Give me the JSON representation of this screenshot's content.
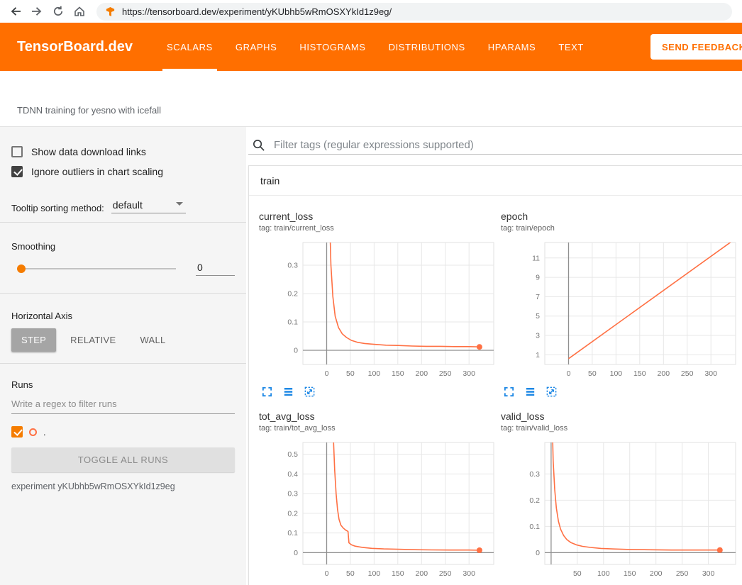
{
  "browser": {
    "url": "https://tensorboard.dev/experiment/yKUbhb5wRmOSXYkId1z9eg/"
  },
  "header": {
    "logo": "TensorBoard.dev",
    "tabs": [
      {
        "label": "SCALARS",
        "active": true
      },
      {
        "label": "GRAPHS",
        "active": false
      },
      {
        "label": "HISTOGRAMS",
        "active": false
      },
      {
        "label": "DISTRIBUTIONS",
        "active": false
      },
      {
        "label": "HPARAMS",
        "active": false
      },
      {
        "label": "TEXT",
        "active": false
      }
    ],
    "feedback_button": "SEND FEEDBACK"
  },
  "experiment_bar": {
    "title": "TDNN training for yesno with icefall"
  },
  "sidebar": {
    "show_download_label": "Show data download links",
    "show_download_checked": false,
    "ignore_outliers_label": "Ignore outliers in chart scaling",
    "ignore_outliers_checked": true,
    "tooltip_label": "Tooltip sorting method:",
    "tooltip_value": "default",
    "smoothing_label": "Smoothing",
    "smoothing_value": "0",
    "axis_label": "Horizontal Axis",
    "axis_options": [
      "STEP",
      "RELATIVE",
      "WALL"
    ],
    "axis_selected": "STEP",
    "runs_label": "Runs",
    "runs_filter_placeholder": "Write a regex to filter runs",
    "run_name": ".",
    "run_checked": true,
    "toggle_all_label": "TOGGLE ALL RUNS",
    "experiment_name": "experiment yKUbhb5wRmOSXYkId1z9eg"
  },
  "main": {
    "filter_placeholder": "Filter tags (regular expressions supported)",
    "group_label": "train"
  },
  "colors": {
    "header": "#ff6f00",
    "accent": "#f57c00",
    "icon_blue": "#1e88e5",
    "line": "#ff7043"
  },
  "chart_data": [
    {
      "type": "line",
      "title": "current_loss",
      "tag": "tag: train/current_loss",
      "xlim": [
        -50,
        352
      ],
      "ylim": [
        -0.05,
        0.38
      ],
      "xticks": [
        0,
        50,
        100,
        150,
        200,
        250,
        300
      ],
      "yticks": [
        0,
        0.1,
        0.2,
        0.3
      ],
      "grid": true,
      "series": [
        {
          "name": ".",
          "color": "#ff7043",
          "endpoint": true,
          "points": [
            [
              5,
              0.55
            ],
            [
              9,
              0.3
            ],
            [
              13,
              0.19
            ],
            [
              18,
              0.12
            ],
            [
              25,
              0.08
            ],
            [
              33,
              0.058
            ],
            [
              42,
              0.045
            ],
            [
              52,
              0.035
            ],
            [
              65,
              0.028
            ],
            [
              80,
              0.024
            ],
            [
              100,
              0.021
            ],
            [
              125,
              0.018
            ],
            [
              150,
              0.017
            ],
            [
              180,
              0.015
            ],
            [
              210,
              0.014
            ],
            [
              240,
              0.014
            ],
            [
              270,
              0.013
            ],
            [
              300,
              0.013
            ],
            [
              322,
              0.012
            ]
          ]
        }
      ]
    },
    {
      "type": "line",
      "title": "epoch",
      "tag": "tag: train/epoch",
      "xlim": [
        -50,
        352
      ],
      "ylim": [
        0,
        12.6
      ],
      "xticks": [
        0,
        50,
        100,
        150,
        200,
        250,
        300
      ],
      "yticks": [
        1,
        3,
        5,
        7,
        9,
        11
      ],
      "grid": true,
      "series": [
        {
          "name": ".",
          "color": "#ff7043",
          "endpoint": false,
          "points": [
            [
              0,
              0.6
            ],
            [
              352,
              13.0
            ]
          ]
        }
      ]
    },
    {
      "type": "line",
      "title": "tot_avg_loss",
      "tag": "tag: train/tot_avg_loss",
      "xlim": [
        -50,
        352
      ],
      "ylim": [
        -0.06,
        0.56
      ],
      "xticks": [
        0,
        50,
        100,
        150,
        200,
        250,
        300
      ],
      "yticks": [
        0,
        0.1,
        0.2,
        0.3,
        0.4,
        0.5
      ],
      "grid": true,
      "series": [
        {
          "name": ".",
          "color": "#ff7043",
          "endpoint": true,
          "points": [
            [
              14,
              0.6
            ],
            [
              17,
              0.42
            ],
            [
              20,
              0.3
            ],
            [
              23,
              0.22
            ],
            [
              26,
              0.17
            ],
            [
              30,
              0.14
            ],
            [
              35,
              0.125
            ],
            [
              40,
              0.115
            ],
            [
              45,
              0.108
            ],
            [
              47,
              0.05
            ],
            [
              52,
              0.04
            ],
            [
              60,
              0.033
            ],
            [
              75,
              0.027
            ],
            [
              95,
              0.022
            ],
            [
              120,
              0.019
            ],
            [
              150,
              0.017
            ],
            [
              185,
              0.015
            ],
            [
              220,
              0.014
            ],
            [
              260,
              0.013
            ],
            [
              300,
              0.013
            ],
            [
              322,
              0.012
            ]
          ]
        }
      ]
    },
    {
      "type": "line",
      "title": "valid_loss",
      "tag": "tag: train/valid_loss",
      "xlim": [
        -12,
        352
      ],
      "ylim": [
        -0.045,
        0.42
      ],
      "xticks": [
        50,
        100,
        150,
        200,
        250,
        300
      ],
      "yticks": [
        0,
        0.1,
        0.2,
        0.3
      ],
      "grid": true,
      "series": [
        {
          "name": ".",
          "color": "#ff7043",
          "endpoint": true,
          "points": [
            [
              1,
              0.6
            ],
            [
              4,
              0.35
            ],
            [
              7,
              0.24
            ],
            [
              10,
              0.17
            ],
            [
              14,
              0.12
            ],
            [
              18,
              0.09
            ],
            [
              24,
              0.065
            ],
            [
              30,
              0.05
            ],
            [
              38,
              0.038
            ],
            [
              48,
              0.03
            ],
            [
              60,
              0.024
            ],
            [
              75,
              0.02
            ],
            [
              95,
              0.016
            ],
            [
              120,
              0.014
            ],
            [
              150,
              0.012
            ],
            [
              190,
              0.011
            ],
            [
              230,
              0.01
            ],
            [
              280,
              0.01
            ],
            [
              322,
              0.01
            ]
          ]
        }
      ]
    }
  ]
}
